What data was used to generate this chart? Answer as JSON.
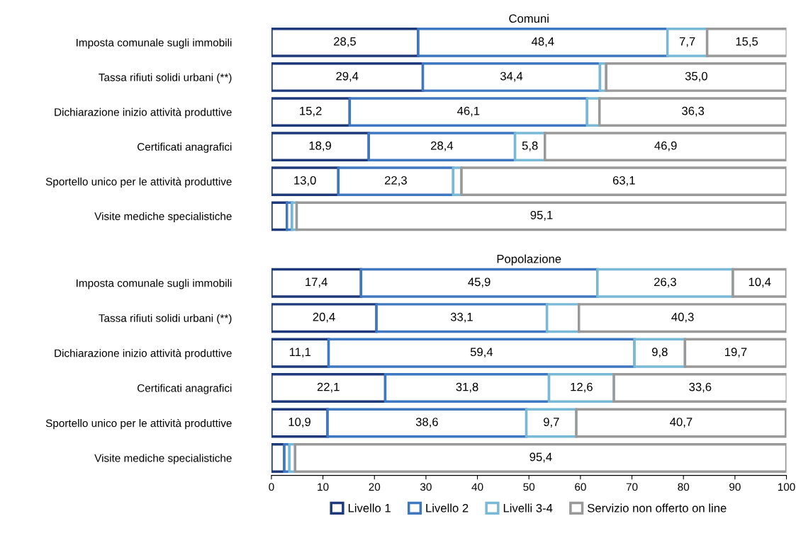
{
  "chart_data": [
    {
      "type": "bar",
      "orientation": "horizontal",
      "stacked": true,
      "title": "Comuni",
      "categories": [
        "Imposta comunale sugli immobili",
        "Tassa rifiuti solidi urbani (**)",
        "Dichiarazione inizio attività produttive",
        "Certificati anagrafici",
        "Sportello unico per le attività produttive",
        "Visite mediche specialistiche"
      ],
      "series": [
        {
          "color": "#1f3a7a",
          "values": [
            28.5,
            29.4,
            15.2,
            18.9,
            13.0,
            3.0
          ],
          "value_labels": [
            "28,5",
            "29,4",
            "15,2",
            "18,9",
            "13,0",
            null
          ]
        },
        {
          "color": "#3f78c0",
          "values": [
            48.4,
            34.4,
            46.1,
            28.4,
            22.3,
            1.0
          ],
          "value_labels": [
            "48,4",
            "34,4",
            "46,1",
            "28,4",
            "22,3",
            null
          ]
        },
        {
          "color": "#7ab9d6",
          "values": [
            7.7,
            1.2,
            2.4,
            5.8,
            1.6,
            0.9
          ],
          "value_labels": [
            "7,7",
            null,
            null,
            "5,8",
            null,
            null
          ]
        },
        {
          "color": "#999999",
          "values": [
            15.5,
            35.0,
            36.3,
            46.9,
            63.1,
            95.1
          ],
          "value_labels": [
            "15,5",
            "35,0",
            "36,3",
            "46,9",
            "63,1",
            "95,1"
          ]
        }
      ],
      "xlim": [
        0,
        100
      ],
      "xticks": [
        0,
        10,
        20,
        30,
        40,
        50,
        60,
        70,
        80,
        90,
        100
      ],
      "tick_labels": "y",
      "grid": false
    },
    {
      "type": "bar",
      "orientation": "horizontal",
      "stacked": true,
      "title": "Popolazione",
      "categories": [
        "Imposta comunale sugli immobili",
        "Tassa rifiuti solidi urbani (**)",
        "Dichiarazione inizio attività produttive",
        "Certificati anagrafici",
        "Sportello unico per le attività produttive",
        "Visite mediche specialistiche"
      ],
      "series": [
        {
          "name": "Livello 1",
          "color": "#1f3a7a",
          "values": [
            17.4,
            20.4,
            11.1,
            22.1,
            10.9,
            2.5
          ],
          "value_labels": [
            "17,4",
            "20,4",
            "11,1",
            "22,1",
            "10,9",
            null
          ]
        },
        {
          "name": "Livello 2",
          "color": "#3f78c0",
          "values": [
            45.9,
            33.1,
            59.4,
            31.8,
            38.6,
            1.0
          ],
          "value_labels": [
            "45,9",
            "33,1",
            "59,4",
            "31,8",
            "38,6",
            null
          ]
        },
        {
          "name": "Livelli 3-4",
          "color": "#7ab9d6",
          "values": [
            26.3,
            6.2,
            9.8,
            12.6,
            9.7,
            1.1
          ],
          "value_labels": [
            "26,3",
            null,
            "9,8",
            "12,6",
            "9,7",
            null
          ]
        },
        {
          "name": "Servizio non offerto on line",
          "color": "#999999",
          "values": [
            10.4,
            40.3,
            19.7,
            33.6,
            40.7,
            95.4
          ],
          "value_labels": [
            "10,4",
            "40,3",
            "19,7",
            "33,6",
            "40,7",
            "95,4"
          ]
        }
      ],
      "xlim": [
        0,
        100
      ],
      "xticks": [
        0,
        10,
        20,
        30,
        40,
        50,
        60,
        70,
        80,
        90,
        100
      ],
      "grid": false,
      "legend": "bottom"
    }
  ]
}
